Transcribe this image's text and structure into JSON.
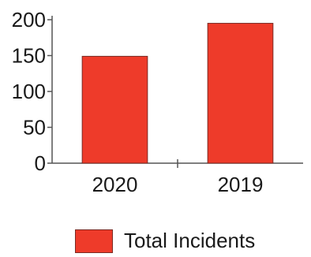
{
  "chart_data": {
    "type": "bar",
    "categories": [
      "2020",
      "2019"
    ],
    "series": [
      {
        "name": "Total Incidents",
        "values": [
          149,
          195
        ]
      }
    ],
    "title": "",
    "xlabel": "",
    "ylabel": "",
    "ylim": [
      0,
      200
    ],
    "yticks": [
      0,
      50,
      100,
      150,
      200
    ],
    "grid": false,
    "legend_position": "bottom-center",
    "bar_color": "#ee3b2a",
    "bar_edge_color": "#7a2b24",
    "axis_color": "#555555"
  }
}
